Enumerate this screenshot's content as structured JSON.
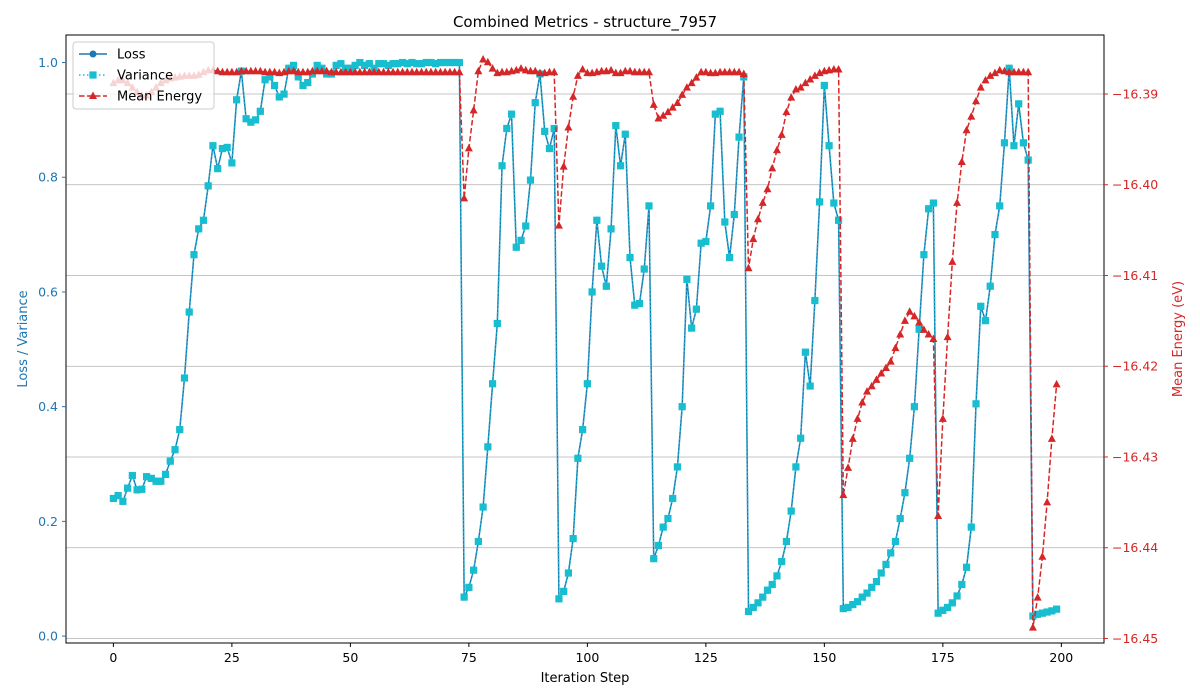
{
  "chart_data": {
    "type": "line",
    "title": "Combined Metrics - structure_7957",
    "xlabel": "Iteration Step",
    "ylabel_left": "Loss / Variance",
    "ylabel_right": "Mean Energy (eV)",
    "xlim": [
      -10,
      209
    ],
    "ylim_left": [
      -0.012,
      1.048
    ],
    "ylim_right": [
      -16.4505,
      -16.3835
    ],
    "x_ticks": [
      0,
      25,
      50,
      75,
      100,
      125,
      150,
      175,
      200
    ],
    "y_ticks_left": [
      0.0,
      0.2,
      0.4,
      0.6,
      0.8,
      1.0
    ],
    "y_ticks_right": [
      -16.45,
      -16.44,
      -16.43,
      -16.42,
      -16.41,
      -16.4,
      -16.39
    ],
    "grid": "horizontal-right-axis",
    "legend_position": "top-left",
    "series": [
      {
        "name": "Loss",
        "axis": "left",
        "color": "#1f77b4",
        "line": "solid",
        "marker": "circle",
        "x": [
          0,
          1,
          2,
          3,
          4,
          5,
          6,
          7,
          8,
          9,
          10,
          11,
          12,
          13,
          14,
          15,
          16,
          17,
          18,
          19,
          20,
          21,
          22,
          23,
          24,
          25,
          26,
          27,
          28,
          29,
          30,
          31,
          32,
          33,
          34,
          35,
          36,
          37,
          38,
          39,
          40,
          41,
          42,
          43,
          44,
          45,
          46,
          47,
          48,
          49,
          50,
          51,
          52,
          53,
          54,
          55,
          56,
          57,
          58,
          59,
          60,
          61,
          62,
          63,
          64,
          65,
          66,
          67,
          68,
          69,
          70,
          71,
          72,
          73,
          74,
          75,
          76,
          77,
          78,
          79,
          80,
          81,
          82,
          83,
          84,
          85,
          86,
          87,
          88,
          89,
          90,
          91,
          92,
          93,
          94,
          95,
          96,
          97,
          98,
          99,
          100,
          101,
          102,
          103,
          104,
          105,
          106,
          107,
          108,
          109,
          110,
          111,
          112,
          113,
          114,
          115,
          116,
          117,
          118,
          119,
          120,
          121,
          122,
          123,
          124,
          125,
          126,
          127,
          128,
          129,
          130,
          131,
          132,
          133,
          134,
          135,
          136,
          137,
          138,
          139,
          140,
          141,
          142,
          143,
          144,
          145,
          146,
          147,
          148,
          149,
          150,
          151,
          152,
          153,
          154,
          155,
          156,
          157,
          158,
          159,
          160,
          161,
          162,
          163,
          164,
          165,
          166,
          167,
          168,
          169,
          170,
          171,
          172,
          173,
          174,
          175,
          176,
          177,
          178,
          179,
          180,
          181,
          182,
          183,
          184,
          185,
          186,
          187,
          188,
          189,
          190,
          191,
          192,
          193,
          194,
          195,
          196,
          197,
          198,
          199
        ],
        "y": [
          0.24,
          0.245,
          0.235,
          0.258,
          0.28,
          0.255,
          0.256,
          0.278,
          0.275,
          0.27,
          0.27,
          0.282,
          0.305,
          0.325,
          0.36,
          0.45,
          0.565,
          0.665,
          0.71,
          0.725,
          0.785,
          0.855,
          0.815,
          0.85,
          0.852,
          0.825,
          0.935,
          0.985,
          0.902,
          0.896,
          0.9,
          0.915,
          0.97,
          0.975,
          0.96,
          0.94,
          0.945,
          0.99,
          0.995,
          0.975,
          0.96,
          0.965,
          0.98,
          0.995,
          0.99,
          0.98,
          0.98,
          0.995,
          0.998,
          0.99,
          0.99,
          0.995,
          1.0,
          0.995,
          0.998,
          0.99,
          0.998,
          0.998,
          0.995,
          0.998,
          0.998,
          1.0,
          0.998,
          1.0,
          0.998,
          0.998,
          1.0,
          1.0,
          0.998,
          1.0,
          1.0,
          1.0,
          1.0,
          1.0,
          0.068,
          0.085,
          0.115,
          0.165,
          0.225,
          0.33,
          0.44,
          0.545,
          0.82,
          0.885,
          0.91,
          0.678,
          0.69,
          0.715,
          0.795,
          0.93,
          0.98,
          0.88,
          0.85,
          0.885,
          0.065,
          0.078,
          0.11,
          0.17,
          0.31,
          0.36,
          0.44,
          0.6,
          0.725,
          0.645,
          0.61,
          0.71,
          0.89,
          0.82,
          0.875,
          0.66,
          0.577,
          0.58,
          0.64,
          0.75,
          0.135,
          0.158,
          0.19,
          0.205,
          0.24,
          0.295,
          0.4,
          0.622,
          0.537,
          0.57,
          0.685,
          0.688,
          0.75,
          0.91,
          0.915,
          0.722,
          0.66,
          0.735,
          0.87,
          0.975,
          0.043,
          0.05,
          0.058,
          0.068,
          0.08,
          0.09,
          0.105,
          0.13,
          0.165,
          0.218,
          0.295,
          0.345,
          0.495,
          0.436,
          0.585,
          0.757,
          0.96,
          0.855,
          0.755,
          0.725,
          0.048,
          0.05,
          0.055,
          0.06,
          0.068,
          0.075,
          0.085,
          0.095,
          0.11,
          0.125,
          0.145,
          0.165,
          0.205,
          0.25,
          0.31,
          0.4,
          0.535,
          0.665,
          0.745,
          0.755,
          0.04,
          0.045,
          0.05,
          0.058,
          0.07,
          0.09,
          0.12,
          0.19,
          0.405,
          0.575,
          0.55,
          0.61,
          0.7,
          0.75,
          0.86,
          0.99,
          0.855,
          0.928,
          0.86,
          0.83,
          0.035,
          0.038,
          0.04,
          0.042,
          0.044,
          0.047
        ]
      },
      {
        "name": "Variance",
        "axis": "left",
        "color": "#17becf",
        "line": "dotted",
        "marker": "square",
        "same_as": "Loss"
      },
      {
        "name": "Mean Energy",
        "axis": "right",
        "color": "#d62728",
        "line": "dashed",
        "marker": "triangle",
        "x": [
          0,
          1,
          2,
          3,
          4,
          5,
          6,
          7,
          8,
          9,
          10,
          11,
          12,
          13,
          14,
          15,
          16,
          17,
          18,
          19,
          20,
          21,
          22,
          23,
          24,
          25,
          26,
          27,
          28,
          29,
          30,
          31,
          32,
          33,
          34,
          35,
          36,
          37,
          38,
          39,
          40,
          41,
          42,
          43,
          44,
          45,
          46,
          47,
          48,
          49,
          50,
          51,
          52,
          53,
          54,
          55,
          56,
          57,
          58,
          59,
          60,
          61,
          62,
          63,
          64,
          65,
          66,
          67,
          68,
          69,
          70,
          71,
          72,
          73,
          74,
          75,
          76,
          77,
          78,
          79,
          80,
          81,
          82,
          83,
          84,
          85,
          86,
          87,
          88,
          89,
          90,
          91,
          92,
          93,
          94,
          95,
          96,
          97,
          98,
          99,
          100,
          101,
          102,
          103,
          104,
          105,
          106,
          107,
          108,
          109,
          110,
          111,
          112,
          113,
          114,
          115,
          116,
          117,
          118,
          119,
          120,
          121,
          122,
          123,
          124,
          125,
          126,
          127,
          128,
          129,
          130,
          131,
          132,
          133,
          134,
          135,
          136,
          137,
          138,
          139,
          140,
          141,
          142,
          143,
          144,
          145,
          146,
          147,
          148,
          149,
          150,
          151,
          152,
          153,
          154,
          155,
          156,
          157,
          158,
          159,
          160,
          161,
          162,
          163,
          164,
          165,
          166,
          167,
          168,
          169,
          170,
          171,
          172,
          173,
          174,
          175,
          176,
          177,
          178,
          179,
          180,
          181,
          182,
          183,
          184,
          185,
          186,
          187,
          188,
          189,
          190,
          191,
          192,
          193,
          194,
          195,
          196,
          197,
          198,
          199
        ],
        "y": [
          -16.3888,
          -16.3885,
          -16.3885,
          -16.3888,
          -16.3893,
          -16.3898,
          -16.3902,
          -16.3902,
          -16.3898,
          -16.3893,
          -16.3888,
          -16.3885,
          -16.3883,
          -16.3882,
          -16.3881,
          -16.388,
          -16.388,
          -16.388,
          -16.3879,
          -16.3876,
          -16.3874,
          -16.3874,
          -16.3875,
          -16.3876,
          -16.3876,
          -16.3876,
          -16.3876,
          -16.3875,
          -16.3875,
          -16.3875,
          -16.3875,
          -16.3875,
          -16.3876,
          -16.3876,
          -16.3876,
          -16.3877,
          -16.3876,
          -16.3875,
          -16.3875,
          -16.3876,
          -16.3876,
          -16.3876,
          -16.3875,
          -16.3875,
          -16.3875,
          -16.3875,
          -16.3876,
          -16.3876,
          -16.3876,
          -16.3876,
          -16.3876,
          -16.3876,
          -16.3876,
          -16.3876,
          -16.3876,
          -16.3876,
          -16.3876,
          -16.3876,
          -16.3876,
          -16.3876,
          -16.3876,
          -16.3876,
          -16.3876,
          -16.3876,
          -16.3876,
          -16.3876,
          -16.3876,
          -16.3876,
          -16.3876,
          -16.3876,
          -16.3876,
          -16.3876,
          -16.3876,
          -16.3876,
          -16.4015,
          -16.396,
          -16.3918,
          -16.3875,
          -16.3862,
          -16.3865,
          -16.3872,
          -16.3877,
          -16.3876,
          -16.3876,
          -16.3875,
          -16.3874,
          -16.3872,
          -16.3874,
          -16.3875,
          -16.3875,
          -16.3877,
          -16.3877,
          -16.3876,
          -16.3876,
          -16.4045,
          -16.398,
          -16.3937,
          -16.3903,
          -16.388,
          -16.3873,
          -16.3877,
          -16.3877,
          -16.3876,
          -16.3875,
          -16.3875,
          -16.3874,
          -16.3877,
          -16.3877,
          -16.3875,
          -16.3875,
          -16.3876,
          -16.3876,
          -16.3876,
          -16.3876,
          -16.3912,
          -16.3927,
          -16.3924,
          -16.392,
          -16.3915,
          -16.391,
          -16.3901,
          -16.3893,
          -16.3888,
          -16.3882,
          -16.3876,
          -16.3876,
          -16.3877,
          -16.3877,
          -16.3876,
          -16.3876,
          -16.3876,
          -16.3876,
          -16.3876,
          -16.3878,
          -16.4092,
          -16.406,
          -16.4038,
          -16.402,
          -16.4005,
          -16.3982,
          -16.3962,
          -16.3945,
          -16.392,
          -16.3904,
          -16.3895,
          -16.3893,
          -16.3888,
          -16.3884,
          -16.388,
          -16.3877,
          -16.3875,
          -16.3874,
          -16.3873,
          -16.3873,
          -16.4342,
          -16.4312,
          -16.428,
          -16.4258,
          -16.424,
          -16.4228,
          -16.4222,
          -16.4215,
          -16.4208,
          -16.4202,
          -16.4195,
          -16.418,
          -16.4165,
          -16.415,
          -16.414,
          -16.4145,
          -16.4152,
          -16.416,
          -16.4165,
          -16.417,
          -16.4365,
          -16.4258,
          -16.4168,
          -16.4085,
          -16.402,
          -16.3975,
          -16.394,
          -16.3925,
          -16.3908,
          -16.3893,
          -16.3885,
          -16.388,
          -16.3877,
          -16.3874,
          -16.3875,
          -16.3876,
          -16.3876,
          -16.3876,
          -16.3876,
          -16.3876,
          -16.4488,
          -16.4455,
          -16.441,
          -16.435,
          -16.428,
          -16.422
        ]
      }
    ]
  }
}
